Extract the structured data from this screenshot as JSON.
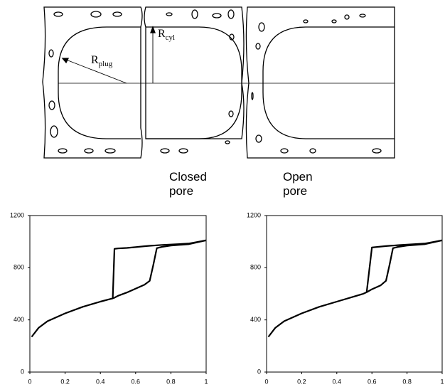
{
  "diagram": {
    "labels": [
      {
        "base": "R",
        "sub": "plug"
      },
      {
        "base": "R",
        "sub": "cyl"
      }
    ]
  },
  "chart_data": [
    {
      "type": "line",
      "title": "Closed pore",
      "x": [
        0.01,
        0.05,
        0.1,
        0.2,
        0.3,
        0.4,
        0.45,
        0.47,
        0.48,
        0.5,
        0.55,
        0.6,
        0.65,
        0.68,
        0.7,
        0.72,
        0.75,
        0.8,
        0.9,
        1.0
      ],
      "series": [
        {
          "color": "#000000",
          "values": [
            270,
            340,
            390,
            450,
            500,
            540,
            558,
            565,
            570,
            585,
            610,
            640,
            670,
            700,
            820,
            950,
            960,
            970,
            980,
            1010
          ]
        },
        {
          "color": "#000000",
          "values": [
            null,
            null,
            null,
            null,
            null,
            null,
            null,
            565,
            945,
            948,
            952,
            958,
            965,
            968,
            970,
            972,
            975,
            978,
            985,
            1010
          ]
        }
      ],
      "xlim": [
        0,
        1
      ],
      "ylim": [
        0,
        1200
      ],
      "xticks": [
        0,
        0.2,
        0.4,
        0.6,
        0.8,
        1
      ],
      "yticks": [
        0,
        400,
        800,
        1200
      ]
    },
    {
      "type": "line",
      "title": "Open pore",
      "x": [
        0.01,
        0.05,
        0.1,
        0.2,
        0.3,
        0.4,
        0.5,
        0.55,
        0.57,
        0.6,
        0.65,
        0.68,
        0.7,
        0.72,
        0.75,
        0.8,
        0.9,
        1.0
      ],
      "series": [
        {
          "color": "#000000",
          "values": [
            270,
            340,
            390,
            450,
            500,
            540,
            580,
            600,
            612,
            635,
            665,
            700,
            820,
            950,
            960,
            970,
            980,
            1010
          ]
        },
        {
          "color": "#000000",
          "values": [
            null,
            null,
            null,
            null,
            null,
            null,
            null,
            null,
            612,
            955,
            962,
            966,
            968,
            970,
            973,
            977,
            985,
            1010
          ]
        }
      ],
      "xlim": [
        0,
        1
      ],
      "ylim": [
        0,
        1200
      ],
      "xticks": [
        0,
        0.2,
        0.4,
        0.6,
        0.8,
        1
      ],
      "yticks": [
        0,
        400,
        800,
        1200
      ]
    }
  ]
}
